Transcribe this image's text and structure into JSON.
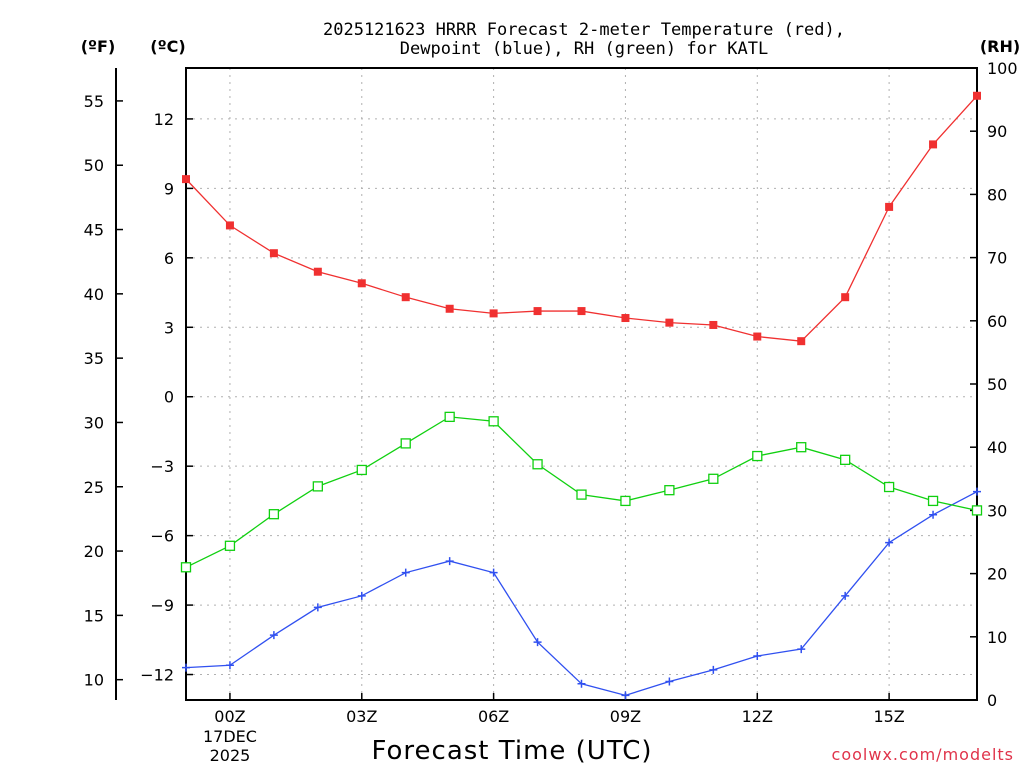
{
  "chart_data": {
    "type": "line",
    "title_line1": "2025121623 HRRR Forecast 2-meter Temperature (red),",
    "title_line2": "Dewpoint (blue), RH (green) for KATL",
    "xlabel": "Forecast Time (UTC)",
    "credit": "coolwx.com/modelts",
    "unit_left_f": "(ºF)",
    "unit_left_c": "(ºC)",
    "unit_right": "(RH)",
    "x_range": [
      -1,
      17
    ],
    "x_ticks": [
      {
        "x": 0,
        "label": "00Z",
        "sub1": "17DEC",
        "sub2": "2025"
      },
      {
        "x": 3,
        "label": "03Z"
      },
      {
        "x": 6,
        "label": "06Z"
      },
      {
        "x": 9,
        "label": "09Z"
      },
      {
        "x": 12,
        "label": "12Z"
      },
      {
        "x": 15,
        "label": "15Z"
      }
    ],
    "celsius_range": [
      -13.1,
      14.2
    ],
    "celsius_ticks": [
      "12",
      "9",
      "6",
      "3",
      "0",
      "−3",
      "−6",
      "−9",
      "−12"
    ],
    "celsius_tick_values": [
      12,
      9,
      6,
      3,
      0,
      -3,
      -6,
      -9,
      -12
    ],
    "fahrenheit_ticks": [
      "55",
      "50",
      "45",
      "40",
      "35",
      "30",
      "25",
      "20",
      "15",
      "10"
    ],
    "fahrenheit_tick_values": [
      55,
      50,
      45,
      40,
      35,
      30,
      25,
      20,
      15,
      10
    ],
    "rh_range": [
      0,
      100
    ],
    "rh_ticks": [
      "100",
      "90",
      "80",
      "70",
      "60",
      "50",
      "40",
      "30",
      "20",
      "10",
      "0"
    ],
    "rh_tick_values": [
      100,
      90,
      80,
      70,
      60,
      50,
      40,
      30,
      20,
      10,
      0
    ],
    "x": [
      -1,
      0,
      1,
      2,
      3,
      4,
      5,
      6,
      7,
      8,
      9,
      10,
      11,
      12,
      13,
      14,
      15,
      16,
      17
    ],
    "series": [
      {
        "name": "2-meter Temperature",
        "unit": "C",
        "color": "#f03030",
        "marker": "filled-square",
        "values": [
          9.4,
          7.4,
          6.2,
          5.4,
          4.9,
          4.3,
          3.8,
          3.6,
          3.7,
          3.7,
          3.4,
          3.2,
          3.1,
          2.6,
          2.4,
          4.3,
          8.2,
          10.9,
          13.0
        ]
      },
      {
        "name": "Dewpoint",
        "unit": "C",
        "color": "#3050f0",
        "marker": "plus",
        "values": [
          -11.7,
          -11.6,
          -10.3,
          -9.1,
          -8.6,
          -7.6,
          -7.1,
          -7.6,
          -10.6,
          -12.4,
          -12.9,
          -12.3,
          -11.8,
          -11.2,
          -10.9,
          -8.6,
          -6.3,
          -5.1,
          -4.1
        ]
      },
      {
        "name": "Relative Humidity",
        "unit": "%",
        "color": "#10d010",
        "marker": "open-square",
        "values": [
          21,
          24.4,
          29.4,
          33.8,
          36.4,
          40.6,
          44.8,
          44.1,
          37.3,
          32.5,
          31.5,
          33.2,
          35,
          38.6,
          40,
          38,
          33.7,
          31.5,
          30
        ]
      }
    ]
  }
}
